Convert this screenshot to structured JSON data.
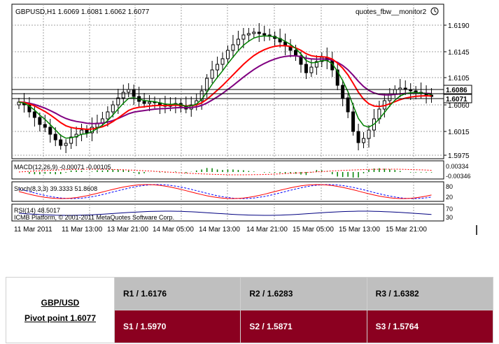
{
  "chart": {
    "header": "GBPUSD,H1  1.6069 1.6081 1.6062 1.6077",
    "indicator_name": "quotes_fbw__monitor2",
    "price_ticks": [
      "1.6190",
      "1.6145",
      "1.6105",
      "1.6060",
      "1.6015",
      "1.5975"
    ],
    "price_labels_highlight": [
      "1.6086",
      "1.6071"
    ],
    "time_ticks": [
      "11 Mar 2011",
      "11 Mar 13:00",
      "13 Mar 21:00",
      "14 Mar 05:00",
      "14 Mar 13:00",
      "14 Mar 21:00",
      "15 Mar 05:00",
      "15 Mar 13:00",
      "15 Mar 21:00"
    ],
    "macd_label": "MACD(12,26,9) -0.00071 -0.00105",
    "macd_ticks": [
      "0.00334",
      "-0.00346"
    ],
    "stoch_label": "Stoch(8,3,3) 39.3333 51.8608",
    "stoch_ticks": [
      "80",
      "20"
    ],
    "rsi_label": "RSI(14) 48.5017",
    "rsi_ticks": [
      "70",
      "30"
    ],
    "copyright": "ICMB Platform, © 2001-2011 MetaQuotes Software Corp.",
    "colors": {
      "bg": "#ffffff",
      "grid": "#c0c0c0",
      "ema_fast": "#008000",
      "ema_mid": "#ff0000",
      "ema_slow": "#800080",
      "macd": "#008000",
      "stoch_main": "#ff0000",
      "stoch_signal": "#0000ff",
      "rsi": "#000080"
    }
  },
  "pivot": {
    "symbol": "GBP/USD",
    "pivot_point": "Pivot point 1.6077",
    "resistances": [
      "R1 / 1.6176",
      "R2 / 1.6283",
      "R3 / 1.6382"
    ],
    "supports": [
      "S1 / 1.5970",
      "S2 / 1.5871",
      "S3 / 1.5764"
    ],
    "colors": {
      "resistance_bg": "#bfbfbf",
      "support_bg": "#8b0020",
      "support_text": "#ffffff"
    }
  }
}
